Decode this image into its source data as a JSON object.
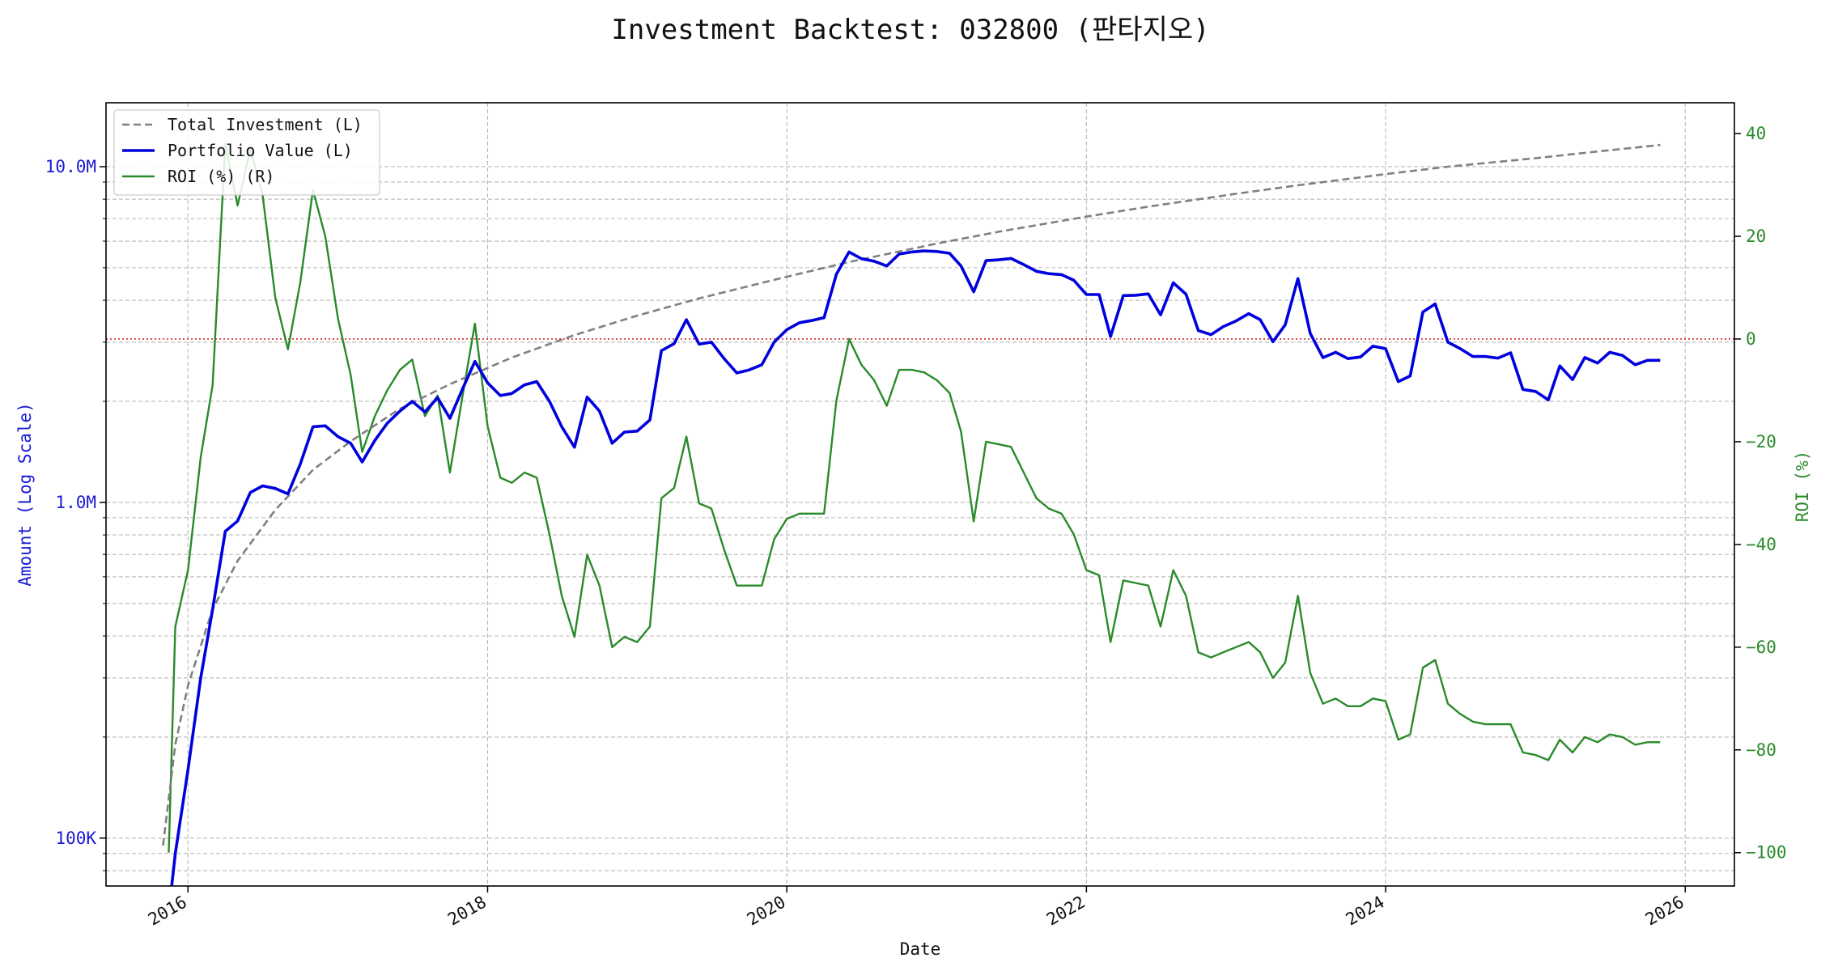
{
  "chart_data": {
    "type": "line",
    "title": "Investment Backtest: 032800 (판타지오)",
    "xlabel": "Date",
    "ylabel_left": "Amount (Log Scale)",
    "ylabel_right": "ROI (%)",
    "y_left_scale": "log",
    "y_left_range": [
      72000,
      15500000
    ],
    "y_right_range": [
      -106.5,
      46
    ],
    "x_range": [
      "2015-06-15",
      "2026-05-01"
    ],
    "grid": true,
    "legend_position": "top-left",
    "reference_line": {
      "axis": "right",
      "value": 0,
      "color": "#d62728",
      "style": "dotted"
    },
    "x_ticks": [
      {
        "date": "2016-01-01",
        "label": "2016"
      },
      {
        "date": "2018-01-01",
        "label": "2018"
      },
      {
        "date": "2020-01-01",
        "label": "2020"
      },
      {
        "date": "2022-01-01",
        "label": "2022"
      },
      {
        "date": "2024-01-01",
        "label": "2024"
      },
      {
        "date": "2026-01-01",
        "label": "2026"
      }
    ],
    "y_left_ticks": [
      {
        "value": 100000,
        "label": "100K"
      },
      {
        "value": 1000000,
        "label": "1.0M"
      },
      {
        "value": 10000000,
        "label": "10.0M"
      }
    ],
    "y_right_ticks": [
      {
        "value": -100,
        "label": "−100"
      },
      {
        "value": -80,
        "label": "−80"
      },
      {
        "value": -60,
        "label": "−60"
      },
      {
        "value": -40,
        "label": "−40"
      },
      {
        "value": -20,
        "label": "−20"
      },
      {
        "value": 0,
        "label": "0"
      },
      {
        "value": 20,
        "label": "20"
      },
      {
        "value": 40,
        "label": "40"
      }
    ],
    "series": [
      {
        "name": "Total Investment (L)",
        "axis": "left",
        "color": "#808080",
        "style": "dashed",
        "x": [
          "2015-11-01",
          "2015-12-01",
          "2016-01-01",
          "2016-03-01",
          "2016-05-01",
          "2016-08-01",
          "2016-11-01",
          "2017-02-01",
          "2017-06-01",
          "2017-10-01",
          "2018-03-01",
          "2018-08-01",
          "2019-01-01",
          "2019-06-01",
          "2020-01-01",
          "2020-06-01",
          "2021-01-01",
          "2021-06-01",
          "2022-01-01",
          "2022-06-01",
          "2023-01-01",
          "2023-06-01",
          "2024-01-01",
          "2024-06-01",
          "2025-01-01",
          "2025-06-01",
          "2025-11-01"
        ],
        "values": [
          95000,
          190000,
          285000,
          480000,
          670000,
          950000,
          1250000,
          1520000,
          1900000,
          2250000,
          2700000,
          3150000,
          3600000,
          4050000,
          4700000,
          5200000,
          5900000,
          6400000,
          7100000,
          7600000,
          8300000,
          8800000,
          9500000,
          10000000,
          10600000,
          11100000,
          11600000
        ]
      },
      {
        "name": "Portfolio Value (L)",
        "axis": "left",
        "color": "#0000dd",
        "style": "solid",
        "x": [
          "2015-11-15",
          "2015-12-01",
          "2016-01-01",
          "2016-02-01",
          "2016-03-01",
          "2016-04-01",
          "2016-05-01",
          "2016-06-01",
          "2016-07-01",
          "2016-08-01",
          "2016-09-01",
          "2016-10-01",
          "2016-11-01",
          "2016-12-01",
          "2017-01-01",
          "2017-02-01",
          "2017-03-01",
          "2017-04-01",
          "2017-05-01",
          "2017-06-01",
          "2017-07-01",
          "2017-08-01",
          "2017-09-01",
          "2017-10-01",
          "2017-11-01",
          "2017-12-01",
          "2018-01-01",
          "2018-02-01",
          "2018-03-01",
          "2018-04-01",
          "2018-05-01",
          "2018-06-01",
          "2018-07-01",
          "2018-08-01",
          "2018-09-01",
          "2018-10-01",
          "2018-11-01",
          "2018-12-01",
          "2019-01-01",
          "2019-02-01",
          "2019-03-01",
          "2019-04-01",
          "2019-05-01",
          "2019-06-01",
          "2019-07-01",
          "2019-08-01",
          "2019-09-01",
          "2019-10-01",
          "2019-11-01",
          "2019-12-01",
          "2020-01-01",
          "2020-02-01",
          "2020-03-01",
          "2020-04-01",
          "2020-05-01",
          "2020-06-01",
          "2020-07-01",
          "2020-08-01",
          "2020-09-01",
          "2020-10-01",
          "2020-11-01",
          "2020-12-01",
          "2021-01-01",
          "2021-02-01",
          "2021-03-01",
          "2021-04-01",
          "2021-05-01",
          "2021-06-01",
          "2021-07-01",
          "2021-08-01",
          "2021-09-01",
          "2021-10-01",
          "2021-11-01",
          "2021-12-01",
          "2022-01-01",
          "2022-02-01",
          "2022-03-01",
          "2022-04-01",
          "2022-05-01",
          "2022-06-01",
          "2022-07-01",
          "2022-08-01",
          "2022-09-01",
          "2022-10-01",
          "2022-11-01",
          "2022-12-01",
          "2023-01-01",
          "2023-02-01",
          "2023-03-01",
          "2023-04-01",
          "2023-05-01",
          "2023-06-01",
          "2023-07-01",
          "2023-08-01",
          "2023-09-01",
          "2023-10-01",
          "2023-11-01",
          "2023-12-01",
          "2024-01-01",
          "2024-02-01",
          "2024-03-01",
          "2024-04-01",
          "2024-05-01",
          "2024-06-01",
          "2024-07-01",
          "2024-08-01",
          "2024-09-01",
          "2024-10-01",
          "2024-11-01",
          "2024-12-01",
          "2025-01-01",
          "2025-02-01",
          "2025-03-01",
          "2025-04-01",
          "2025-05-01",
          "2025-06-01",
          "2025-07-01",
          "2025-08-01",
          "2025-09-01",
          "2025-10-01",
          "2025-11-01"
        ],
        "values": [
          60000,
          90000,
          160000,
          300000,
          480000,
          820000,
          880000,
          1070000,
          1120000,
          1100000,
          1060000,
          1300000,
          1680000,
          1690000,
          1570000,
          1500000,
          1320000,
          1530000,
          1720000,
          1870000,
          2000000,
          1860000,
          2050000,
          1780000,
          2180000,
          2630000,
          2270000,
          2080000,
          2110000,
          2240000,
          2290000,
          2000000,
          1680000,
          1460000,
          2060000,
          1870000,
          1500000,
          1620000,
          1630000,
          1760000,
          2830000,
          2970000,
          3500000,
          2960000,
          3000000,
          2680000,
          2430000,
          2480000,
          2570000,
          3000000,
          3270000,
          3430000,
          3480000,
          3550000,
          4780000,
          5570000,
          5320000,
          5230000,
          5060000,
          5490000,
          5570000,
          5610000,
          5590000,
          5520000,
          5060000,
          4240000,
          5250000,
          5280000,
          5330000,
          5110000,
          4880000,
          4800000,
          4770000,
          4590000,
          4160000,
          4160000,
          3120000,
          4130000,
          4140000,
          4180000,
          3620000,
          4510000,
          4170000,
          3250000,
          3160000,
          3340000,
          3470000,
          3650000,
          3500000,
          3010000,
          3380000,
          4640000,
          3190000,
          2700000,
          2800000,
          2680000,
          2710000,
          2920000,
          2870000,
          2290000,
          2380000,
          3690000,
          3900000,
          3000000,
          2870000,
          2720000,
          2720000,
          2690000,
          2790000,
          2170000,
          2140000,
          2020000,
          2550000,
          2320000,
          2700000,
          2600000,
          2800000,
          2740000,
          2570000,
          2650000,
          2650000
        ]
      },
      {
        "name": "ROI (%) (R)",
        "axis": "right",
        "color": "#2a8a2a",
        "style": "solid",
        "x": [
          "2015-11-15",
          "2015-12-01",
          "2016-01-01",
          "2016-02-01",
          "2016-03-01",
          "2016-04-01",
          "2016-05-01",
          "2016-06-01",
          "2016-07-01",
          "2016-08-01",
          "2016-09-01",
          "2016-10-01",
          "2016-11-01",
          "2016-12-01",
          "2017-01-01",
          "2017-02-01",
          "2017-03-01",
          "2017-04-01",
          "2017-05-01",
          "2017-06-01",
          "2017-07-01",
          "2017-08-01",
          "2017-09-01",
          "2017-10-01",
          "2017-11-01",
          "2017-12-01",
          "2018-01-01",
          "2018-02-01",
          "2018-03-01",
          "2018-04-01",
          "2018-05-01",
          "2018-06-01",
          "2018-07-01",
          "2018-08-01",
          "2018-09-01",
          "2018-10-01",
          "2018-11-01",
          "2018-12-01",
          "2019-01-01",
          "2019-02-01",
          "2019-03-01",
          "2019-04-01",
          "2019-05-01",
          "2019-06-01",
          "2019-07-01",
          "2019-08-01",
          "2019-09-01",
          "2019-10-01",
          "2019-11-01",
          "2019-12-01",
          "2020-01-01",
          "2020-02-01",
          "2020-03-01",
          "2020-04-01",
          "2020-05-01",
          "2020-06-01",
          "2020-07-01",
          "2020-08-01",
          "2020-09-01",
          "2020-10-01",
          "2020-11-01",
          "2020-12-01",
          "2021-01-01",
          "2021-02-01",
          "2021-03-01",
          "2021-04-01",
          "2021-05-01",
          "2021-06-01",
          "2021-07-01",
          "2021-08-01",
          "2021-09-01",
          "2021-10-01",
          "2021-11-01",
          "2021-12-01",
          "2022-01-01",
          "2022-02-01",
          "2022-03-01",
          "2022-04-01",
          "2022-05-01",
          "2022-06-01",
          "2022-07-01",
          "2022-08-01",
          "2022-09-01",
          "2022-10-01",
          "2022-11-01",
          "2022-12-01",
          "2023-01-01",
          "2023-02-01",
          "2023-03-01",
          "2023-04-01",
          "2023-05-01",
          "2023-06-01",
          "2023-07-01",
          "2023-08-01",
          "2023-09-01",
          "2023-10-01",
          "2023-11-01",
          "2023-12-01",
          "2024-01-01",
          "2024-02-01",
          "2024-03-01",
          "2024-04-01",
          "2024-05-01",
          "2024-06-01",
          "2024-07-01",
          "2024-08-01",
          "2024-09-01",
          "2024-10-01",
          "2024-11-01",
          "2024-12-01",
          "2025-01-01",
          "2025-02-01",
          "2025-03-01",
          "2025-04-01",
          "2025-05-01",
          "2025-06-01",
          "2025-07-01",
          "2025-08-01",
          "2025-09-01",
          "2025-10-01",
          "2025-11-01"
        ],
        "values": [
          -100,
          -56,
          -45,
          -23,
          -9,
          38,
          26,
          37,
          28,
          8,
          -2,
          11,
          29,
          20,
          4,
          -7,
          -22,
          -15,
          -10,
          -6,
          -4,
          -15,
          -11,
          -26,
          -11,
          3,
          -17,
          -27,
          -28,
          -26,
          -27,
          -38,
          -50,
          -58,
          -42,
          -48,
          -60,
          -58,
          -59,
          -56,
          -31,
          -29,
          -19,
          -32,
          -33,
          -41,
          -48,
          -48,
          -48,
          -39,
          -35,
          -34,
          -34,
          -34,
          -12,
          0,
          -5,
          -8,
          -13,
          -6,
          -6,
          -6.5,
          -8,
          -10.5,
          -18,
          -35.5,
          -20,
          -20.5,
          -21,
          -26,
          -31,
          -33,
          -34,
          -38,
          -45,
          -46,
          -59,
          -47,
          -47.5,
          -48,
          -56,
          -45,
          -50,
          -61,
          -62,
          -61,
          -60,
          -59,
          -61,
          -66,
          -63,
          -50,
          -65,
          -71,
          -70,
          -71.5,
          -71.5,
          -70,
          -70.5,
          -78,
          -77,
          -64,
          -62.5,
          -71,
          -73,
          -74.5,
          -75,
          -75,
          -75,
          -80.5,
          -81,
          -82,
          -78,
          -80.5,
          -77.5,
          -78.5,
          -77,
          -77.5,
          -79,
          -78.5,
          -78.5
        ]
      }
    ]
  }
}
